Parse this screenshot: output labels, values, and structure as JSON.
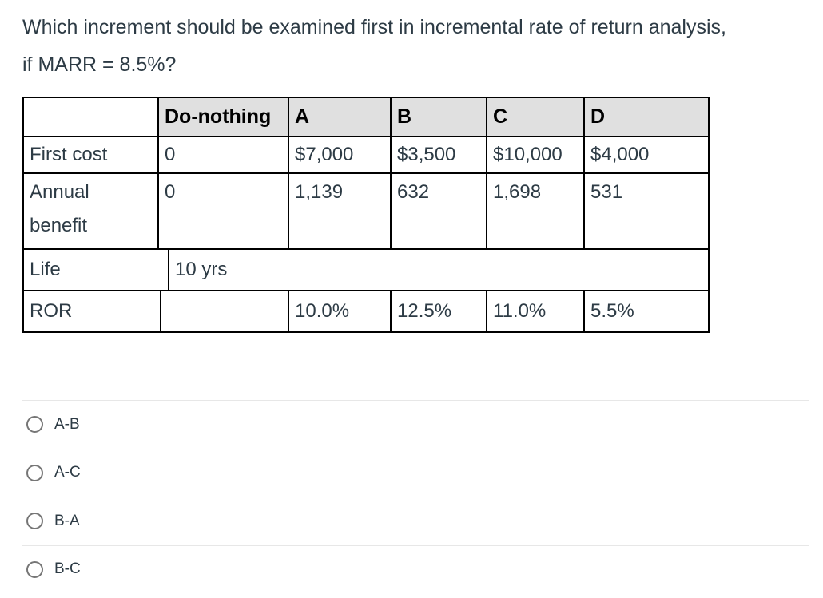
{
  "question": {
    "line1": "Which increment should be examined first in incremental rate of return analysis,",
    "line2": "if MARR = 8.5%?"
  },
  "table": {
    "header": [
      "",
      "Do-nothing",
      "A",
      "B",
      "C",
      "D"
    ],
    "first_cost": {
      "label": "First cost",
      "values": [
        "0",
        "$7,000",
        "$3,500",
        "$10,000",
        "$4,000"
      ]
    },
    "annual_benefit": {
      "label": "Annual benefit",
      "values": [
        "0",
        "1,139",
        "632",
        "1,698",
        "531"
      ]
    },
    "life": {
      "label": "Life",
      "merged_value": "10 yrs"
    },
    "ror": {
      "label": "ROR",
      "values": [
        "",
        "10.0%",
        "12.5%",
        "11.0%",
        "5.5%"
      ]
    }
  },
  "options": [
    "A-B",
    "A-C",
    "B-A",
    "B-C"
  ],
  "colors": {
    "text": "#2d3b45",
    "table_border": "#000000",
    "header_bg": "#e0e0e0",
    "divider": "#e7e7e7",
    "radio_border": "#767676"
  }
}
